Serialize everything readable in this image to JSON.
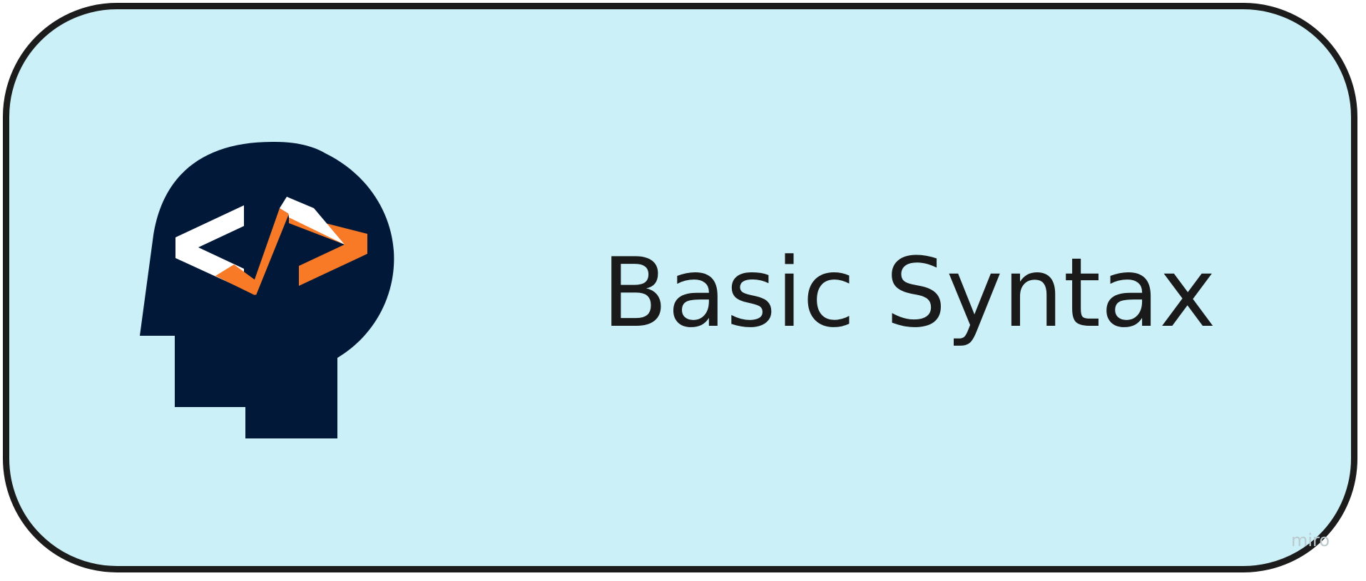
{
  "card": {
    "title": "Basic Syntax",
    "background_color": "#cbf0f7",
    "border_color": "#1c1c1c"
  },
  "logo": {
    "icon": "head-code-icon",
    "colors": {
      "head": "#021838",
      "bracket": "#ffffff",
      "accent": "#f97a26"
    }
  },
  "watermark": {
    "text": "miro"
  }
}
